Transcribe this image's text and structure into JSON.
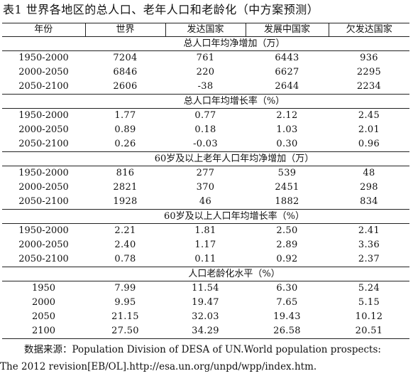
{
  "title": "表1  世界各地区的总人口、老年人口和老龄化（中方案预测）",
  "columns": [
    "年份",
    "世界",
    "发达国家",
    "发展中国家",
    "欠发达国家"
  ],
  "sections": [
    {
      "heading": "总人口年均净增加（万）",
      "rows": [
        [
          "1950-2000",
          "7204",
          "761",
          "6443",
          "936"
        ],
        [
          "2000-2050",
          "6846",
          "220",
          "6627",
          "2295"
        ],
        [
          "2050-2100",
          "2606",
          "-38",
          "2644",
          "2234"
        ]
      ]
    },
    {
      "heading": "总人口年均增长率（%）",
      "rows": [
        [
          "1950-2000",
          "1.77",
          "0.77",
          "2.12",
          "2.45"
        ],
        [
          "2000-2050",
          "0.89",
          "0.18",
          "1.03",
          "2.01"
        ],
        [
          "2050-2100",
          "0.26",
          "-0.03",
          "0.30",
          "0.96"
        ]
      ]
    },
    {
      "heading": "60岁及以上老年人口年均净增加（万）",
      "rows": [
        [
          "1950-2000",
          "816",
          "277",
          "539",
          "48"
        ],
        [
          "2000-2050",
          "2821",
          "370",
          "2451",
          "298"
        ],
        [
          "2050-2100",
          "1928",
          "46",
          "1882",
          "834"
        ]
      ]
    },
    {
      "heading": "60岁及以上人口年均增长率（%）",
      "rows": [
        [
          "1950-2000",
          "2.21",
          "1.81",
          "2.50",
          "2.41"
        ],
        [
          "2000-2050",
          "2.40",
          "1.17",
          "2.89",
          "3.36"
        ],
        [
          "2050-2100",
          "0.78",
          "0.11",
          "0.92",
          "2.37"
        ]
      ]
    },
    {
      "heading": "人口老龄化水平（%）",
      "rows": [
        [
          "1950",
          "7.99",
          "11.54",
          "6.30",
          "5.24"
        ],
        [
          "2000",
          "9.95",
          "19.47",
          "7.65",
          "5.15"
        ],
        [
          "2050",
          "21.15",
          "32.03",
          "19.43",
          "10.12"
        ],
        [
          "2100",
          "27.50",
          "34.29",
          "26.58",
          "20.51"
        ]
      ]
    }
  ],
  "source": {
    "line1": "数据来源：Population Division of DESA of UN.World population prospects:",
    "line2": "The 2012 revision[EB/OL].http://esa.un.org/unpd/wpp/index.htm."
  }
}
